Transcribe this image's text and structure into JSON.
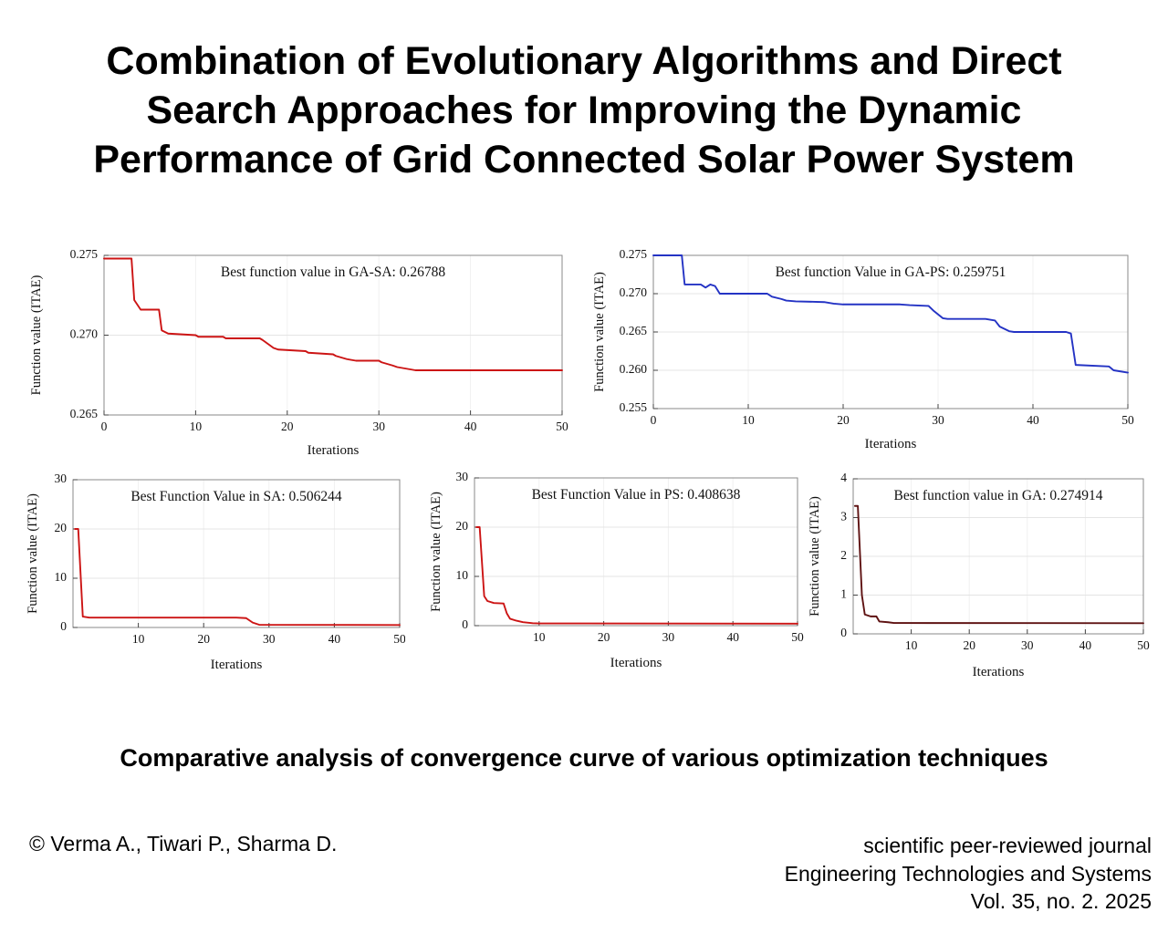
{
  "title": {
    "lines": [
      "Combination of Evolutionary Algorithms and Direct",
      "Search Approaches for Improving the Dynamic",
      "Performance of Grid Connected Solar Power System"
    ]
  },
  "caption": "Comparative analysis of convergence curve of various optimization techniques",
  "footer": {
    "authors": "© Verma A., Tiwari P., Sharma D.",
    "journal_lines": [
      "scientific peer-reviewed journal",
      "Engineering Technologies and Systems",
      "Vol. 35, no. 2. 2025"
    ]
  },
  "chart_data": [
    {
      "id": "ga-sa",
      "type": "line",
      "title": "Best function value in GA-SA: 0.26788",
      "xlabel": "Iterations",
      "ylabel": "Function value (ITAE)",
      "xlim": [
        0,
        50
      ],
      "ylim": [
        0.265,
        0.275
      ],
      "xticks": [
        0,
        10,
        20,
        30,
        40,
        50
      ],
      "xtick_labels": [
        "0",
        "10",
        "20",
        "30",
        "40",
        "50"
      ],
      "yticks": [
        0.265,
        0.27,
        0.275
      ],
      "ytick_labels": [
        "0.265",
        "0.270",
        "0.275"
      ],
      "color": "#cc1414",
      "x": [
        0,
        3,
        3.3,
        4,
        6,
        6.3,
        7,
        10,
        10.3,
        13,
        13.3,
        17,
        17.3,
        18.5,
        19,
        22,
        22.3,
        25,
        25.3,
        26.5,
        27.5,
        30,
        30.3,
        31.5,
        32,
        33,
        34,
        50
      ],
      "y": [
        0.2748,
        0.2748,
        0.2722,
        0.2716,
        0.2716,
        0.2703,
        0.2701,
        0.27,
        0.2699,
        0.2699,
        0.2698,
        0.2698,
        0.2697,
        0.2692,
        0.2691,
        0.269,
        0.2689,
        0.2688,
        0.2687,
        0.2685,
        0.2684,
        0.2684,
        0.2683,
        0.2681,
        0.268,
        0.2679,
        0.2678,
        0.2678
      ]
    },
    {
      "id": "ga-ps",
      "type": "line",
      "title": "Best function Value in GA-PS: 0.259751",
      "xlabel": "Iterations",
      "ylabel": "Function value (ITAE)",
      "xlim": [
        0,
        50
      ],
      "ylim": [
        0.255,
        0.275
      ],
      "xticks": [
        0,
        10,
        20,
        30,
        40,
        50
      ],
      "xtick_labels": [
        "0",
        "10",
        "20",
        "30",
        "40",
        "50"
      ],
      "yticks": [
        0.255,
        0.26,
        0.265,
        0.27,
        0.275
      ],
      "ytick_labels": [
        "0.255",
        "0.260",
        "0.265",
        "0.270",
        "0.275"
      ],
      "color": "#2433c4",
      "x": [
        0,
        3,
        3.3,
        5,
        5.5,
        6,
        6.5,
        7,
        12,
        12.5,
        13.5,
        14,
        15,
        18,
        19,
        20,
        26,
        27,
        29,
        29.5,
        30.5,
        31,
        35,
        36,
        36.5,
        37.5,
        38,
        43.5,
        44,
        44.5,
        48,
        48.5,
        50
      ],
      "y": [
        0.275,
        0.275,
        0.2712,
        0.2712,
        0.2708,
        0.2712,
        0.271,
        0.27,
        0.27,
        0.2696,
        0.2693,
        0.2691,
        0.269,
        0.2689,
        0.2687,
        0.2686,
        0.2686,
        0.2685,
        0.2684,
        0.2678,
        0.2668,
        0.2667,
        0.2667,
        0.2665,
        0.2657,
        0.2651,
        0.265,
        0.265,
        0.2648,
        0.2607,
        0.2605,
        0.26,
        0.2597
      ]
    },
    {
      "id": "sa",
      "type": "line",
      "title": "Best Function Value in SA: 0.506244",
      "xlabel": "Iterations",
      "ylabel": "Function value (ITAE)",
      "xlim": [
        0,
        50
      ],
      "ylim": [
        0,
        30
      ],
      "xticks": [
        10,
        20,
        30,
        40,
        50
      ],
      "xtick_labels": [
        "10",
        "20",
        "30",
        "40",
        "50"
      ],
      "yticks": [
        0,
        10,
        20,
        30
      ],
      "ytick_labels": [
        "0",
        "10",
        "20",
        "30"
      ],
      "color": "#cc1414",
      "x": [
        0.3,
        0.8,
        1.5,
        2.5,
        25,
        26.5,
        27.5,
        28.5,
        50
      ],
      "y": [
        20,
        20,
        2.2,
        2.0,
        2.0,
        1.9,
        1.0,
        0.55,
        0.5
      ]
    },
    {
      "id": "ps",
      "type": "line",
      "title": "Best Function Value in PS: 0.408638",
      "xlabel": "Iterations",
      "ylabel": "Function value (ITAE)",
      "xlim": [
        0,
        50
      ],
      "ylim": [
        0,
        30
      ],
      "xticks": [
        10,
        20,
        30,
        40,
        50
      ],
      "xtick_labels": [
        "10",
        "20",
        "30",
        "40",
        "50"
      ],
      "yticks": [
        0,
        10,
        20,
        30
      ],
      "ytick_labels": [
        "0",
        "10",
        "20",
        "30"
      ],
      "color": "#cc1414",
      "x": [
        0.3,
        0.8,
        1.5,
        2,
        3,
        4.5,
        5,
        5.5,
        6.5,
        7.5,
        9,
        10,
        50
      ],
      "y": [
        20,
        20,
        6,
        5,
        4.6,
        4.5,
        2.5,
        1.4,
        1.0,
        0.7,
        0.5,
        0.45,
        0.41
      ]
    },
    {
      "id": "ga",
      "type": "line",
      "title": "Best function value in GA: 0.274914",
      "xlabel": "Iterations",
      "ylabel": "Function value (ITAE)",
      "xlim": [
        0,
        50
      ],
      "ylim": [
        0,
        4
      ],
      "xticks": [
        10,
        20,
        30,
        40,
        50
      ],
      "xtick_labels": [
        "10",
        "20",
        "30",
        "40",
        "50"
      ],
      "yticks": [
        0,
        1,
        2,
        3,
        4
      ],
      "ytick_labels": [
        "0",
        "1",
        "2",
        "3",
        "4"
      ],
      "color": "#5e1212",
      "x": [
        0.3,
        0.8,
        1.5,
        2,
        3,
        4,
        4.5,
        6,
        7,
        50
      ],
      "y": [
        3.3,
        3.3,
        1.0,
        0.5,
        0.45,
        0.45,
        0.32,
        0.3,
        0.28,
        0.275
      ]
    }
  ]
}
